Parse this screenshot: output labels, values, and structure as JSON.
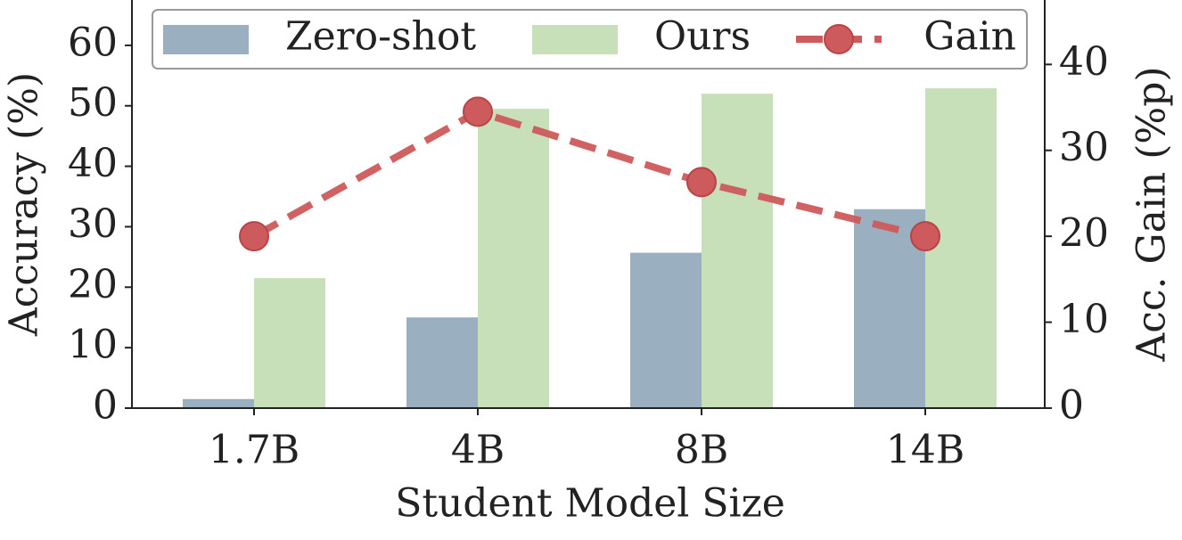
{
  "chart_data": {
    "type": "bar_line",
    "categories": [
      "1.7B",
      "4B",
      "8B",
      "14B"
    ],
    "xlabel": "Student Model Size",
    "ylabel": "Accuracy (%)",
    "y2label": "Acc. Gain (%p)",
    "series": [
      {
        "name": "Zero-shot",
        "type": "bar",
        "color": "#9aafc0",
        "values": [
          1.5,
          15.0,
          25.7,
          32.9
        ]
      },
      {
        "name": "Ours",
        "type": "bar",
        "color": "#c7e0b9",
        "values": [
          21.5,
          49.5,
          52.0,
          52.9
        ]
      },
      {
        "name": "Gain",
        "type": "line",
        "axis": "y2",
        "color": "#cd5a5c",
        "values": [
          20.0,
          34.5,
          26.3,
          20.0
        ]
      }
    ],
    "ylim": [
      0,
      67.5
    ],
    "yticks": [
      0,
      10,
      20,
      30,
      40,
      50,
      60
    ],
    "y2lim": [
      0,
      47.5
    ],
    "y2ticks": [
      0,
      10,
      20,
      30,
      40
    ],
    "legend": "top"
  }
}
